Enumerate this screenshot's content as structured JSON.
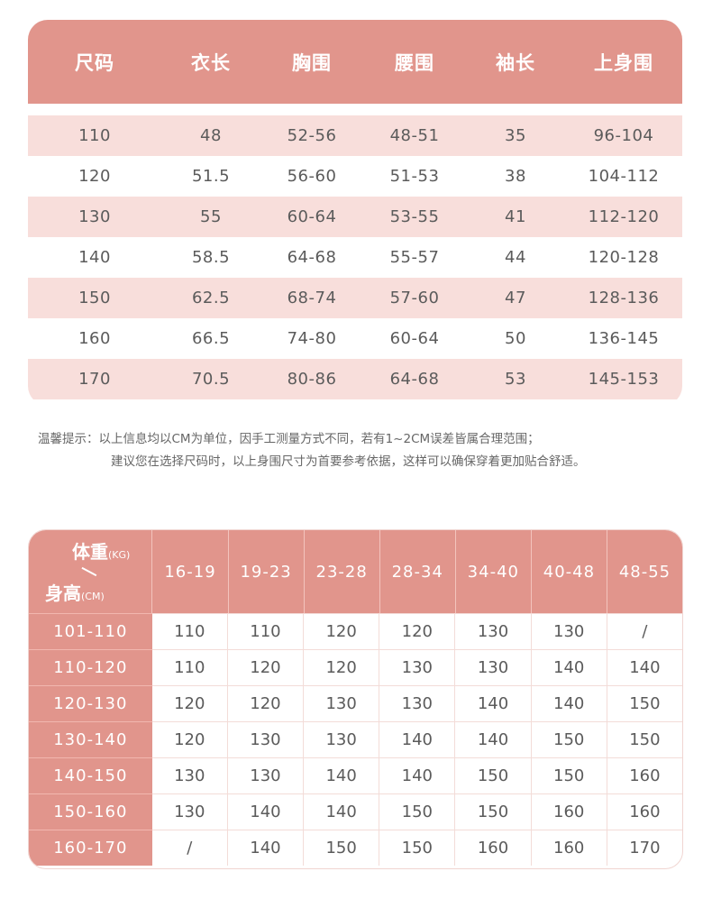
{
  "size_chart": {
    "headers": [
      "尺码",
      "衣长",
      "胸围",
      "腰围",
      "袖长",
      "上身围"
    ],
    "rows": [
      [
        "110",
        "48",
        "52-56",
        "48-51",
        "35",
        "96-104"
      ],
      [
        "120",
        "51.5",
        "56-60",
        "51-53",
        "38",
        "104-112"
      ],
      [
        "130",
        "55",
        "60-64",
        "53-55",
        "41",
        "112-120"
      ],
      [
        "140",
        "58.5",
        "64-68",
        "55-57",
        "44",
        "120-128"
      ],
      [
        "150",
        "62.5",
        "68-74",
        "57-60",
        "47",
        "128-136"
      ],
      [
        "160",
        "66.5",
        "74-80",
        "60-64",
        "50",
        "136-145"
      ],
      [
        "170",
        "70.5",
        "80-86",
        "64-68",
        "53",
        "145-153"
      ]
    ]
  },
  "note": {
    "label": "温馨提示：",
    "line1": "以上信息均以CM为单位，因手工测量方式不同，若有1~2CM误差皆属合理范围；",
    "line2": "建议您在选择尺码时，以上身围尺寸为首要参考依据，这样可以确保穿着更加贴合舒适。"
  },
  "weight_height_chart": {
    "corner": {
      "weight_label": "体重",
      "weight_unit": "(KG)",
      "height_label": "身高",
      "height_unit": "(CM)"
    },
    "weight_columns": [
      "16-19",
      "19-23",
      "23-28",
      "28-34",
      "34-40",
      "40-48",
      "48-55"
    ],
    "rows": [
      {
        "height": "101-110",
        "values": [
          "110",
          "110",
          "120",
          "120",
          "130",
          "130",
          "/"
        ]
      },
      {
        "height": "110-120",
        "values": [
          "110",
          "120",
          "120",
          "130",
          "130",
          "140",
          "140"
        ]
      },
      {
        "height": "120-130",
        "values": [
          "120",
          "120",
          "130",
          "130",
          "140",
          "140",
          "150"
        ]
      },
      {
        "height": "130-140",
        "values": [
          "120",
          "130",
          "130",
          "140",
          "140",
          "150",
          "150"
        ]
      },
      {
        "height": "140-150",
        "values": [
          "130",
          "130",
          "140",
          "140",
          "150",
          "150",
          "160"
        ]
      },
      {
        "height": "150-160",
        "values": [
          "130",
          "140",
          "140",
          "150",
          "150",
          "160",
          "160"
        ]
      },
      {
        "height": "160-170",
        "values": [
          "/",
          "140",
          "150",
          "150",
          "160",
          "160",
          "170"
        ]
      }
    ]
  },
  "colors": {
    "header_pink": "#e1958c",
    "row_stripe": "#f8dedb",
    "text": "#5b5b5b"
  }
}
